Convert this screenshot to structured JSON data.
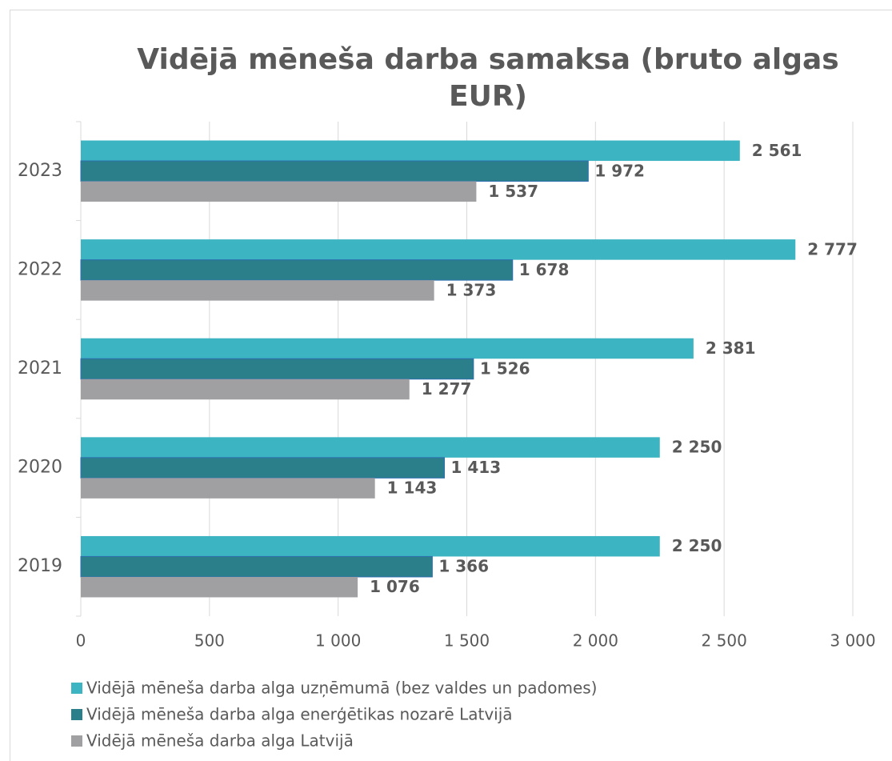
{
  "chart_data": {
    "type": "hbar",
    "title": "Vidējā mēneša darba samaksa (bruto algas EUR)",
    "categories": [
      "2023",
      "2022",
      "2021",
      "2020",
      "2019"
    ],
    "series": [
      {
        "name": "Vidējā mēneša darba alga uzņēmumā (bez valdes un padomes)",
        "color": "#3cb4c2",
        "values": [
          2561,
          2777,
          2381,
          2250,
          2250
        ],
        "value_labels": [
          "2 561",
          "2 777",
          "2 381",
          "2 250",
          "2 250"
        ]
      },
      {
        "name": "Vidējā mēneša darba alga enerģētikas nozarē Latvijā",
        "color": "#2a7f8a",
        "values": [
          1972,
          1678,
          1526,
          1413,
          1366
        ],
        "value_labels": [
          "1 972",
          "1 678",
          "1 526",
          "1 413",
          "1 366"
        ]
      },
      {
        "name": "Vidējā mēneša darba alga Latvijā",
        "color": "#a0a0a3",
        "values": [
          1537,
          1373,
          1277,
          1143,
          1076
        ],
        "value_labels": [
          "1 537",
          "1 373",
          "1 277",
          "1 143",
          "1 076"
        ]
      }
    ],
    "xlim": [
      0,
      3000
    ],
    "xticks": [
      0,
      500,
      {
        "value": 1000,
        "label": "1 000"
      },
      {
        "value": 1500,
        "label": "1 500"
      },
      {
        "value": 2000,
        "label": "2 000"
      },
      {
        "value": 2500,
        "label": "2 500"
      },
      {
        "value": 3000,
        "label": "3 000"
      }
    ],
    "grid": true,
    "legend": "bottom"
  }
}
